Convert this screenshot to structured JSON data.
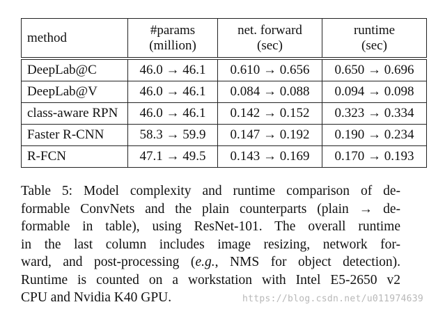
{
  "table": {
    "headers": [
      {
        "line1": "method",
        "line2": ""
      },
      {
        "line1": "#params",
        "line2": "(million)"
      },
      {
        "line1": "net. forward",
        "line2": "(sec)"
      },
      {
        "line1": "runtime",
        "line2": "(sec)"
      }
    ],
    "rows": [
      {
        "method": "DeepLab@C",
        "params": "46.0 → 46.1",
        "forward": "0.610 → 0.656",
        "runtime": "0.650 → 0.696"
      },
      {
        "method": "DeepLab@V",
        "params": "46.0 → 46.1",
        "forward": "0.084 → 0.088",
        "runtime": "0.094 → 0.098"
      },
      {
        "method": "class-aware RPN",
        "params": "46.0 → 46.1",
        "forward": "0.142 → 0.152",
        "runtime": "0.323 → 0.334"
      },
      {
        "method": "Faster R-CNN",
        "params": "58.3 → 59.9",
        "forward": "0.147 → 0.192",
        "runtime": "0.190 → 0.234"
      },
      {
        "method": "R-FCN",
        "params": "47.1 → 49.5",
        "forward": "0.143 → 0.169",
        "runtime": "0.170 → 0.193"
      }
    ]
  },
  "caption": {
    "lines": [
      "Table 5: Model complexity and runtime comparison of de-",
      "formable ConvNets and the plain counterparts (plain → de-",
      "formable in table), using ResNet-101. The overall runtime",
      "in the last column includes image resizing, network for-",
      "ward, and post-processing (",
      "e.g.",
      ", NMS for object detection).",
      "Runtime is counted on a workstation with Intel E5-2650 v2",
      "CPU and Nvidia K40 GPU."
    ]
  },
  "watermark": "https://blog.csdn.net/u011974639"
}
